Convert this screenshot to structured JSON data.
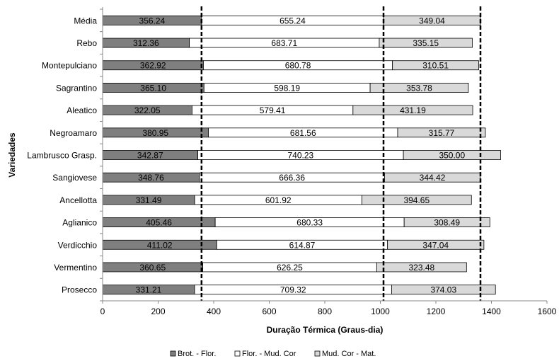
{
  "chart_data": {
    "type": "bar",
    "orientation": "horizontal",
    "stacked": true,
    "categories": [
      "Média",
      "Rebo",
      "Montepulciano",
      "Sagrantino",
      "Aleatico",
      "Negroamaro",
      "Lambrusco Grasp.",
      "Sangiovese",
      "Ancellotta",
      "Aglianico",
      "Verdicchio",
      "Vermentino",
      "Prosecco"
    ],
    "series": [
      {
        "name": "Brot. - Flor.",
        "color": "#7f7f7f",
        "values": [
          356.24,
          312.36,
          362.92,
          365.1,
          322.05,
          380.95,
          342.87,
          348.76,
          331.49,
          405.46,
          411.02,
          360.65,
          331.21
        ],
        "labels": [
          "356.24",
          "312.36",
          "362.92",
          "365.10",
          "322.05",
          "380.95",
          "342.87",
          "348.76",
          "331.49",
          "405.46",
          "411.02",
          "360.65",
          "331.21"
        ]
      },
      {
        "name": "Flor. - Mud. Cor",
        "color": "#ffffff",
        "values": [
          655.24,
          683.71,
          680.78,
          598.19,
          579.41,
          681.56,
          740.23,
          666.36,
          601.92,
          680.33,
          614.87,
          626.25,
          709.32
        ],
        "labels": [
          "655.24",
          "683.71",
          "680.78",
          "598.19",
          "579.41",
          "681.56",
          "740.23",
          "666.36",
          "601.92",
          "680.33",
          "614.87",
          "626.25",
          "709.32"
        ]
      },
      {
        "name": "Mud. Cor - Mat.",
        "color": "#d9d9d9",
        "values": [
          349.04,
          335.15,
          310.51,
          353.78,
          431.19,
          315.77,
          350.0,
          344.42,
          394.65,
          308.49,
          347.04,
          323.48,
          374.03
        ],
        "labels": [
          "349.04",
          "335.15",
          "310.51",
          "353.78",
          "431.19",
          "315.77",
          "350.00",
          "344.42",
          "394.65",
          "308.49",
          "347.04",
          "323.48",
          "374.03"
        ]
      }
    ],
    "xlabel": "Duração Térmica (Graus-dia)",
    "ylabel": "Variedades",
    "xlim": [
      0,
      1600
    ],
    "xticks": [
      0,
      200,
      400,
      600,
      800,
      1000,
      1200,
      1400,
      1600
    ],
    "reference_lines": [
      356.24,
      1011.48,
      1360.52
    ],
    "grid": false,
    "legend_position": "bottom"
  }
}
